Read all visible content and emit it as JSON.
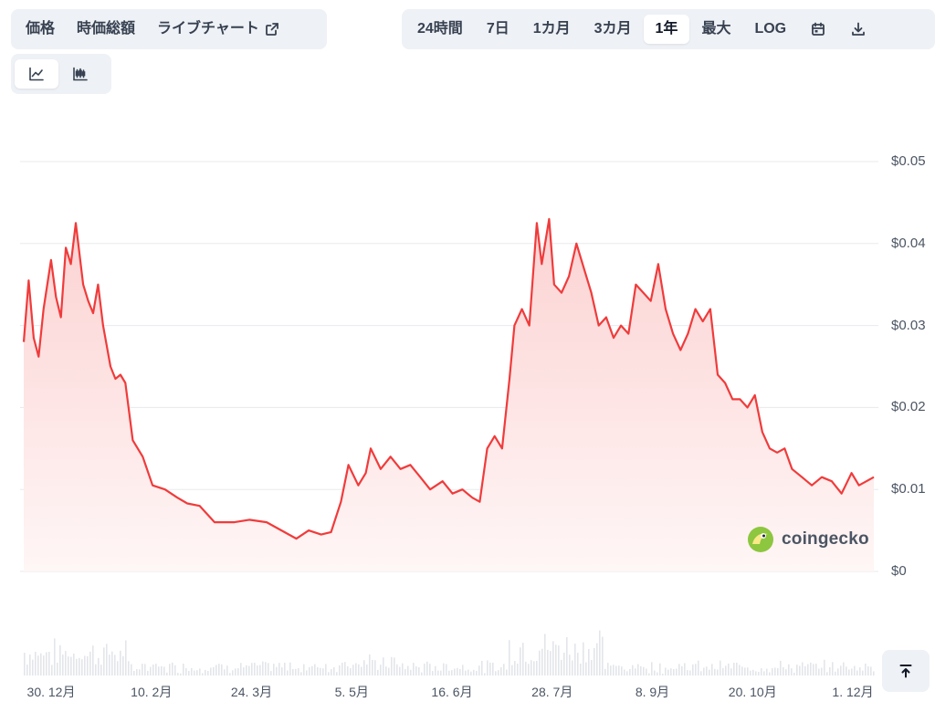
{
  "toolbar": {
    "metric_tabs": [
      {
        "label": "価格",
        "active": true
      },
      {
        "label": "時価総額",
        "active": false
      },
      {
        "label": "ライブチャート",
        "active": false,
        "external": true
      }
    ],
    "range_tabs": [
      {
        "label": "24時間",
        "active": false
      },
      {
        "label": "7日",
        "active": false
      },
      {
        "label": "1カ月",
        "active": false
      },
      {
        "label": "3カ月",
        "active": false
      },
      {
        "label": "1年",
        "active": true
      },
      {
        "label": "最大",
        "active": false
      },
      {
        "label": "LOG",
        "active": false
      }
    ],
    "range_icons": [
      "calendar-icon",
      "download-icon"
    ],
    "chart_type_icons": [
      "line-chart-icon",
      "candlestick-chart-icon"
    ]
  },
  "watermark": {
    "text": "coingecko"
  },
  "colors": {
    "line": "#f03b3b",
    "area_top": "#fcd2d2",
    "area_bottom": "#fff6f6",
    "grid": "#e8eaee",
    "volume": "#e3e5ea",
    "axis_text": "#4b5563"
  },
  "chart_data": {
    "type": "area",
    "title": "",
    "xlabel": "",
    "ylabel": "",
    "ylim": [
      0,
      0.05
    ],
    "y_ticks": [
      "$0",
      "$0.01",
      "$0.02",
      "$0.03",
      "$0.04",
      "$0.05"
    ],
    "x_ticks": [
      "30. 12月",
      "10. 2月",
      "24. 3月",
      "5. 5月",
      "16. 6月",
      "28. 7月",
      "8. 9月",
      "20. 10月",
      "1. 12月"
    ],
    "grid": true,
    "x_domain": [
      "2023-12-30",
      "2024-12-07"
    ],
    "series": [
      {
        "x": [
          "2023-12-30",
          "2024-01-01",
          "2024-01-03",
          "2024-01-05",
          "2024-01-07",
          "2024-01-10",
          "2024-01-12",
          "2024-01-14",
          "2024-01-16",
          "2024-01-18",
          "2024-01-20",
          "2024-01-23",
          "2024-01-25",
          "2024-01-27",
          "2024-01-29",
          "2024-01-31",
          "2024-02-03",
          "2024-02-05",
          "2024-02-07",
          "2024-02-09",
          "2024-02-12",
          "2024-02-16",
          "2024-02-20",
          "2024-02-25",
          "2024-03-01",
          "2024-03-05",
          "2024-03-10",
          "2024-03-16",
          "2024-03-24",
          "2024-03-30",
          "2024-04-06",
          "2024-04-12",
          "2024-04-18",
          "2024-04-23",
          "2024-04-28",
          "2024-05-02",
          "2024-05-06",
          "2024-05-09",
          "2024-05-13",
          "2024-05-16",
          "2024-05-18",
          "2024-05-22",
          "2024-05-26",
          "2024-05-30",
          "2024-06-03",
          "2024-06-07",
          "2024-06-11",
          "2024-06-16",
          "2024-06-20",
          "2024-06-24",
          "2024-06-28",
          "2024-07-01",
          "2024-07-04",
          "2024-07-07",
          "2024-07-10",
          "2024-07-13",
          "2024-07-15",
          "2024-07-18",
          "2024-07-21",
          "2024-07-24",
          "2024-07-26",
          "2024-07-29",
          "2024-07-31",
          "2024-08-03",
          "2024-08-06",
          "2024-08-09",
          "2024-08-12",
          "2024-08-15",
          "2024-08-18",
          "2024-08-21",
          "2024-08-24",
          "2024-08-27",
          "2024-08-30",
          "2024-09-02",
          "2024-09-05",
          "2024-09-08",
          "2024-09-11",
          "2024-09-14",
          "2024-09-17",
          "2024-09-20",
          "2024-09-23",
          "2024-09-26",
          "2024-09-29",
          "2024-10-02",
          "2024-10-05",
          "2024-10-08",
          "2024-10-11",
          "2024-10-14",
          "2024-10-17",
          "2024-10-20",
          "2024-10-23",
          "2024-10-26",
          "2024-10-29",
          "2024-11-01",
          "2024-11-04",
          "2024-11-08",
          "2024-11-12",
          "2024-11-16",
          "2024-11-20",
          "2024-11-24",
          "2024-11-28",
          "2024-12-01",
          "2024-12-04",
          "2024-12-07"
        ],
        "values": [
          0.028,
          0.0355,
          0.0285,
          0.0262,
          0.032,
          0.038,
          0.0335,
          0.031,
          0.0395,
          0.0375,
          0.0425,
          0.035,
          0.033,
          0.0315,
          0.035,
          0.03,
          0.025,
          0.0235,
          0.024,
          0.023,
          0.016,
          0.014,
          0.0105,
          0.01,
          0.009,
          0.0083,
          0.008,
          0.006,
          0.006,
          0.0063,
          0.006,
          0.005,
          0.004,
          0.005,
          0.0045,
          0.0048,
          0.0085,
          0.013,
          0.0105,
          0.012,
          0.015,
          0.0125,
          0.014,
          0.0125,
          0.013,
          0.0115,
          0.01,
          0.011,
          0.0095,
          0.01,
          0.009,
          0.0085,
          0.015,
          0.0165,
          0.015,
          0.0235,
          0.03,
          0.032,
          0.03,
          0.0425,
          0.0375,
          0.043,
          0.035,
          0.034,
          0.036,
          0.04,
          0.037,
          0.034,
          0.03,
          0.031,
          0.0285,
          0.03,
          0.029,
          0.035,
          0.034,
          0.033,
          0.0375,
          0.032,
          0.029,
          0.027,
          0.029,
          0.032,
          0.0305,
          0.032,
          0.024,
          0.023,
          0.021,
          0.021,
          0.02,
          0.0215,
          0.017,
          0.015,
          0.0145,
          0.015,
          0.0125,
          0.0115,
          0.0105,
          0.0115,
          0.011,
          0.0095,
          0.012,
          0.0105,
          0.011,
          0.0115
        ]
      }
    ]
  }
}
